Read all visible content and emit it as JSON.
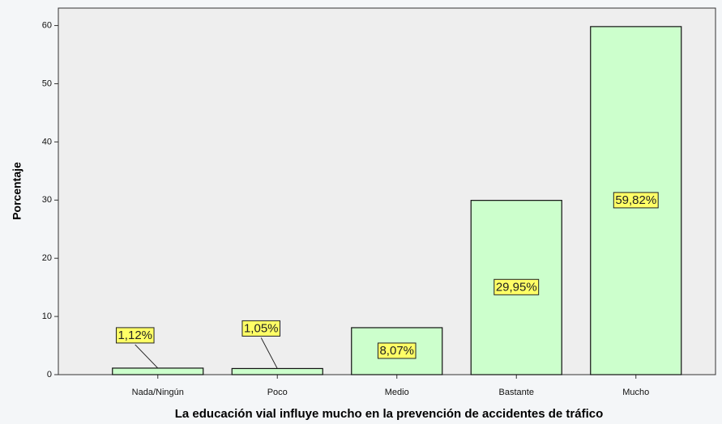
{
  "chart_data": {
    "type": "bar",
    "xlabel": "La educación vial influye mucho en la prevención de accidentes de tráfico",
    "ylabel": "Porcentaje",
    "categories": [
      "Nada/Ningún",
      "Poco",
      "Medio",
      "Bastante",
      "Mucho"
    ],
    "values": [
      1.12,
      1.05,
      8.07,
      29.95,
      59.82
    ],
    "value_labels": [
      "1,12%",
      "1,05%",
      "8,07%",
      "29,95%",
      "59,82%"
    ],
    "color": "#ccffcc",
    "ylim": [
      0,
      63
    ],
    "yticks": [
      0,
      10,
      20,
      30,
      40,
      50,
      60
    ]
  }
}
